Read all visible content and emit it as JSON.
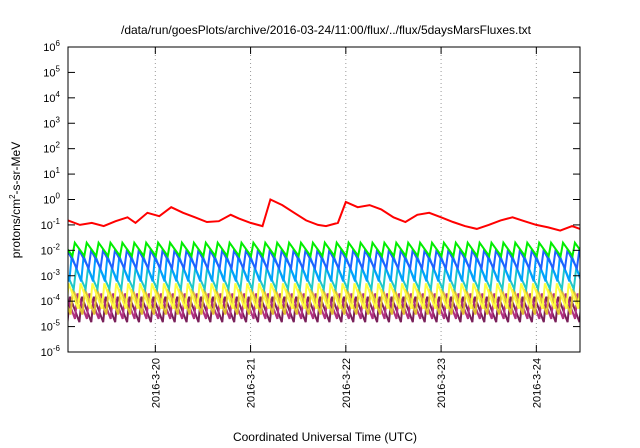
{
  "chart_data": {
    "type": "line",
    "title": "/data/run/goesPlots/archive/2016-03-24/11:00/flux/../flux/5daysMarsFluxes.txt",
    "xlabel": "Coordinated Universal Time (UTC)",
    "ylabel": {
      "pre": "protons/cm",
      "sup": "2",
      "post": "-s-sr-MeV"
    },
    "y_scale": "log",
    "ylim": [
      1e-06,
      1000000.0
    ],
    "y_ticks": [
      {
        "value": 1e-06,
        "base": "10",
        "exp": "-6"
      },
      {
        "value": 1e-05,
        "base": "10",
        "exp": "-5"
      },
      {
        "value": 0.0001,
        "base": "10",
        "exp": "-4"
      },
      {
        "value": 0.001,
        "base": "10",
        "exp": "-3"
      },
      {
        "value": 0.01,
        "base": "10",
        "exp": "-2"
      },
      {
        "value": 0.1,
        "base": "10",
        "exp": "-1"
      },
      {
        "value": 1,
        "base": "10",
        "exp": "0"
      },
      {
        "value": 10,
        "base": "10",
        "exp": "1"
      },
      {
        "value": 100,
        "base": "10",
        "exp": "2"
      },
      {
        "value": 1000,
        "base": "10",
        "exp": "3"
      },
      {
        "value": 10000,
        "base": "10",
        "exp": "4"
      },
      {
        "value": 100000,
        "base": "10",
        "exp": "5"
      },
      {
        "value": 1000000,
        "base": "10",
        "exp": "6"
      }
    ],
    "xlim": [
      "2016-03-19T02:00",
      "2016-03-24T11:00"
    ],
    "x_ticks": [
      {
        "value": "2016-03-20T00:00",
        "label": "2016-3-20"
      },
      {
        "value": "2016-03-21T00:00",
        "label": "2016-3-21"
      },
      {
        "value": "2016-03-22T00:00",
        "label": "2016-3-22"
      },
      {
        "value": "2016-03-23T00:00",
        "label": "2016-3-23"
      },
      {
        "value": "2016-03-24T00:00",
        "label": "2016-3-24"
      }
    ],
    "grid": "vertical dotted at x ticks",
    "series": [
      {
        "color": "#ff0000",
        "points": [
          [
            "2016-03-19T02:00",
            0.15
          ],
          [
            "2016-03-19T05:00",
            0.1
          ],
          [
            "2016-03-19T08:00",
            0.12
          ],
          [
            "2016-03-19T11:00",
            0.09
          ],
          [
            "2016-03-19T14:00",
            0.14
          ],
          [
            "2016-03-19T17:00",
            0.2
          ],
          [
            "2016-03-19T19:00",
            0.12
          ],
          [
            "2016-03-19T22:00",
            0.3
          ],
          [
            "2016-03-20T01:00",
            0.22
          ],
          [
            "2016-03-20T04:00",
            0.5
          ],
          [
            "2016-03-20T07:00",
            0.3
          ],
          [
            "2016-03-20T10:00",
            0.2
          ],
          [
            "2016-03-20T13:00",
            0.13
          ],
          [
            "2016-03-20T16:00",
            0.14
          ],
          [
            "2016-03-20T19:00",
            0.25
          ],
          [
            "2016-03-20T21:00",
            0.18
          ],
          [
            "2016-03-21T00:00",
            0.12
          ],
          [
            "2016-03-21T03:00",
            0.09
          ],
          [
            "2016-03-21T05:00",
            1.0
          ],
          [
            "2016-03-21T08:00",
            0.6
          ],
          [
            "2016-03-21T11:00",
            0.3
          ],
          [
            "2016-03-21T14:00",
            0.15
          ],
          [
            "2016-03-21T17:00",
            0.1
          ],
          [
            "2016-03-21T19:00",
            0.09
          ],
          [
            "2016-03-21T22:00",
            0.12
          ],
          [
            "2016-03-22T00:00",
            0.8
          ],
          [
            "2016-03-22T03:00",
            0.5
          ],
          [
            "2016-03-22T06:00",
            0.6
          ],
          [
            "2016-03-22T09:00",
            0.4
          ],
          [
            "2016-03-22T12:00",
            0.2
          ],
          [
            "2016-03-22T15:00",
            0.13
          ],
          [
            "2016-03-22T18:00",
            0.25
          ],
          [
            "2016-03-22T21:00",
            0.3
          ],
          [
            "2016-03-23T00:00",
            0.2
          ],
          [
            "2016-03-23T03:00",
            0.13
          ],
          [
            "2016-03-23T06:00",
            0.09
          ],
          [
            "2016-03-23T09:00",
            0.07
          ],
          [
            "2016-03-23T12:00",
            0.1
          ],
          [
            "2016-03-23T15:00",
            0.15
          ],
          [
            "2016-03-23T18:00",
            0.2
          ],
          [
            "2016-03-23T21:00",
            0.14
          ],
          [
            "2016-03-24T00:00",
            0.1
          ],
          [
            "2016-03-24T03:00",
            0.08
          ],
          [
            "2016-03-24T06:00",
            0.06
          ],
          [
            "2016-03-24T09:00",
            0.09
          ],
          [
            "2016-03-24T11:00",
            0.07
          ]
        ]
      },
      {
        "color": "#00ee00",
        "low": 0.006,
        "high": 0.02
      },
      {
        "color": "#2060ff",
        "low": 0.002,
        "high": 0.01
      },
      {
        "color": "#00a0ff",
        "low": 0.0006,
        "high": 0.006
      },
      {
        "color": "#20c8c8",
        "low": 0.0003,
        "high": 0.002
      },
      {
        "color": "#ffff40",
        "low": 5e-05,
        "high": 0.0005
      },
      {
        "color": "#e0c030",
        "low": 3e-05,
        "high": 0.0003
      },
      {
        "color": "#b03080",
        "low": 2e-05,
        "high": 0.0002
      },
      {
        "color": "#7a1f5a",
        "low": 1.5e-05,
        "high": 0.00015
      }
    ]
  }
}
